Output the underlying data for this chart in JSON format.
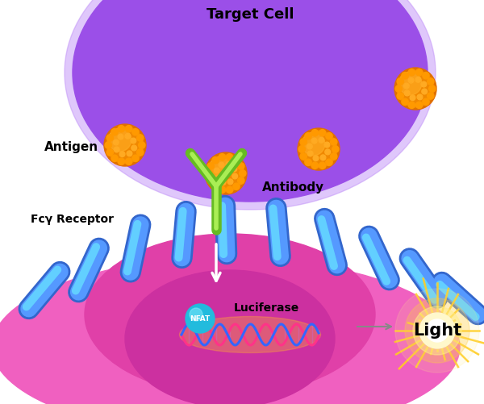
{
  "title": "Target Cell",
  "antigen_label": "Antigen",
  "antibody_label": "Antibody",
  "fcr_label": "Fcγ Receptor",
  "luciferase_label": "Luciferase",
  "nfat_label": "NFAT",
  "light_label": "Light",
  "bg_color": "#ffffff",
  "target_cell_color": "#9b4fe8",
  "target_cell_edge": "#c090f8",
  "effector_outer_color": "#f060c0",
  "effector_inner_color": "#e040a8",
  "inner_dome_color": "#cc30a0",
  "antigen_dark": "#e07000",
  "antigen_mid": "#f08800",
  "antigen_light": "#ffaa22",
  "antigen_bump": "#ff9900",
  "antibody_outer": "#66bb22",
  "antibody_inner": "#aaee55",
  "receptor_dark": "#3366cc",
  "receptor_mid": "#5599ff",
  "receptor_light": "#99ccff",
  "receptor_cyan": "#66ddff",
  "nfat_color": "#22bbdd",
  "dna_pink": "#ff3388",
  "dna_blue": "#3366ff",
  "dna_orange": "#ff9933",
  "light_yellow": "#ffdd44",
  "light_inner": "#ffffff",
  "arrow_gray": "#888888"
}
